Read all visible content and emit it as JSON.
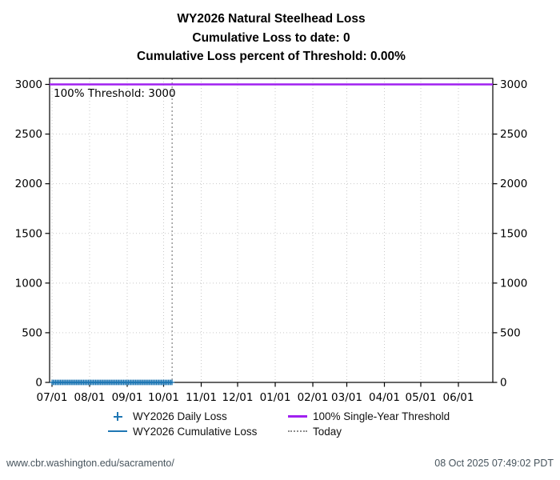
{
  "title_block": {
    "line1": "WY2026 Natural Steelhead Loss",
    "line2": "Cumulative Loss to date: 0",
    "line3": "Cumulative Loss percent of Threshold: 0.00%"
  },
  "chart_data": {
    "type": "line",
    "title": "WY2026 Natural Steelhead Loss",
    "x_axis": {
      "tick_labels": [
        "07/01",
        "08/01",
        "09/01",
        "10/01",
        "11/01",
        "12/01",
        "01/01",
        "02/01",
        "03/01",
        "04/01",
        "05/01",
        "06/01"
      ],
      "tick_day_offsets": [
        0,
        31,
        62,
        92,
        123,
        153,
        184,
        215,
        243,
        274,
        304,
        335
      ],
      "span_days": 365
    },
    "y_axis": {
      "ticks": [
        0,
        500,
        1000,
        1500,
        2000,
        2500,
        3000
      ],
      "range": [
        0,
        3055
      ],
      "mirrored_right": true
    },
    "grid": true,
    "grid_color": "#c9c9c9",
    "axis_color": "#000000",
    "threshold_line": {
      "value": 3000,
      "annotation": "100% Threshold: 3000",
      "color": "#a020f0"
    },
    "today_line": {
      "day_offset": 99,
      "date_label": "10/08",
      "color": "#666666",
      "style": "dotted"
    },
    "series": [
      {
        "name": "WY2026 Daily Loss",
        "style": "plus-markers",
        "color": "#1f77b4",
        "day_start": 0,
        "day_end": 99,
        "value_each_day": 0
      },
      {
        "name": "WY2026 Cumulative Loss",
        "style": "line",
        "color": "#1f77b4",
        "day_start": 0,
        "day_end": 99,
        "end_value": 0
      }
    ],
    "summary": {
      "cumulative_loss_to_date": 0,
      "cumulative_loss_percent_of_threshold": "0.00%"
    }
  },
  "legend": {
    "items": [
      {
        "label": "WY2026 Daily Loss",
        "marker": "plus",
        "color": "#1f77b4"
      },
      {
        "label": "WY2026 Cumulative Loss",
        "marker": "line",
        "color": "#1f77b4"
      },
      {
        "label": "100% Single-Year Threshold",
        "marker": "line-thick",
        "color": "#a020f0"
      },
      {
        "label": "Today",
        "marker": "dotted",
        "color": "#8c8c8c"
      }
    ]
  },
  "footer": {
    "url": "www.cbr.washington.edu/sacramento/",
    "timestamp": "08 Oct 2025 07:49:02 PDT"
  }
}
